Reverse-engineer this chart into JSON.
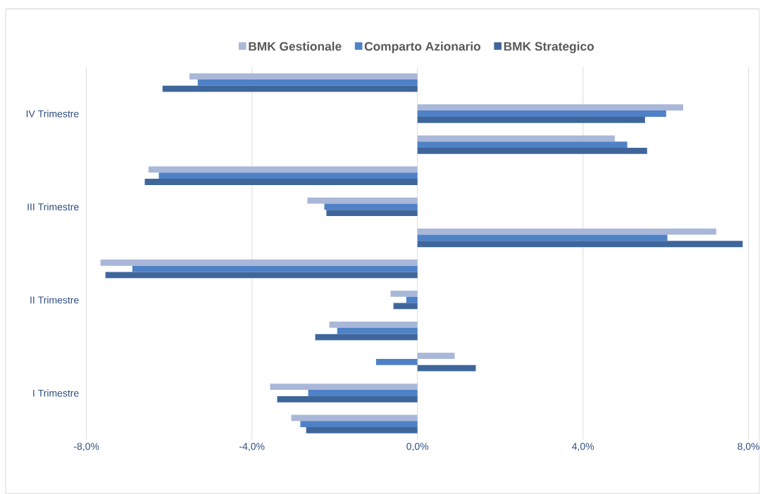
{
  "chart_data": {
    "type": "bar",
    "orientation": "horizontal",
    "categories": [
      null,
      "IV Trimestre",
      null,
      null,
      "III Trimestre",
      null,
      null,
      "II Trimestre",
      null,
      null,
      "I Trimestre",
      null
    ],
    "series": [
      {
        "name": "BMK Gestionale",
        "color": "#a9b7d8",
        "values": [
          -5.51,
          6.42,
          4.77,
          -6.5,
          -2.66,
          7.22,
          -7.66,
          -0.65,
          -2.13,
          0.9,
          -3.56,
          -3.05
        ]
      },
      {
        "name": "Comparto Azionario",
        "color": "#4f81c6",
        "values": [
          -5.31,
          6.01,
          5.07,
          -6.25,
          -2.25,
          6.04,
          -6.89,
          -0.27,
          -1.94,
          -1.0,
          -2.64,
          -2.83
        ]
      },
      {
        "name": "BMK Strategico",
        "color": "#3e669b",
        "values": [
          -6.16,
          5.5,
          5.55,
          -6.59,
          -2.2,
          7.86,
          -7.54,
          -0.58,
          -2.47,
          1.41,
          -3.39,
          -2.69
        ]
      }
    ],
    "xlim": [
      -8,
      8
    ],
    "xticks": [
      {
        "value": -8,
        "label": "-8,0%"
      },
      {
        "value": -4,
        "label": "-4,0%"
      },
      {
        "value": 0,
        "label": "0,0%"
      },
      {
        "value": 4,
        "label": "4,0%"
      },
      {
        "value": 8,
        "label": "8,0%"
      }
    ],
    "grid": "x",
    "legend": "top"
  }
}
